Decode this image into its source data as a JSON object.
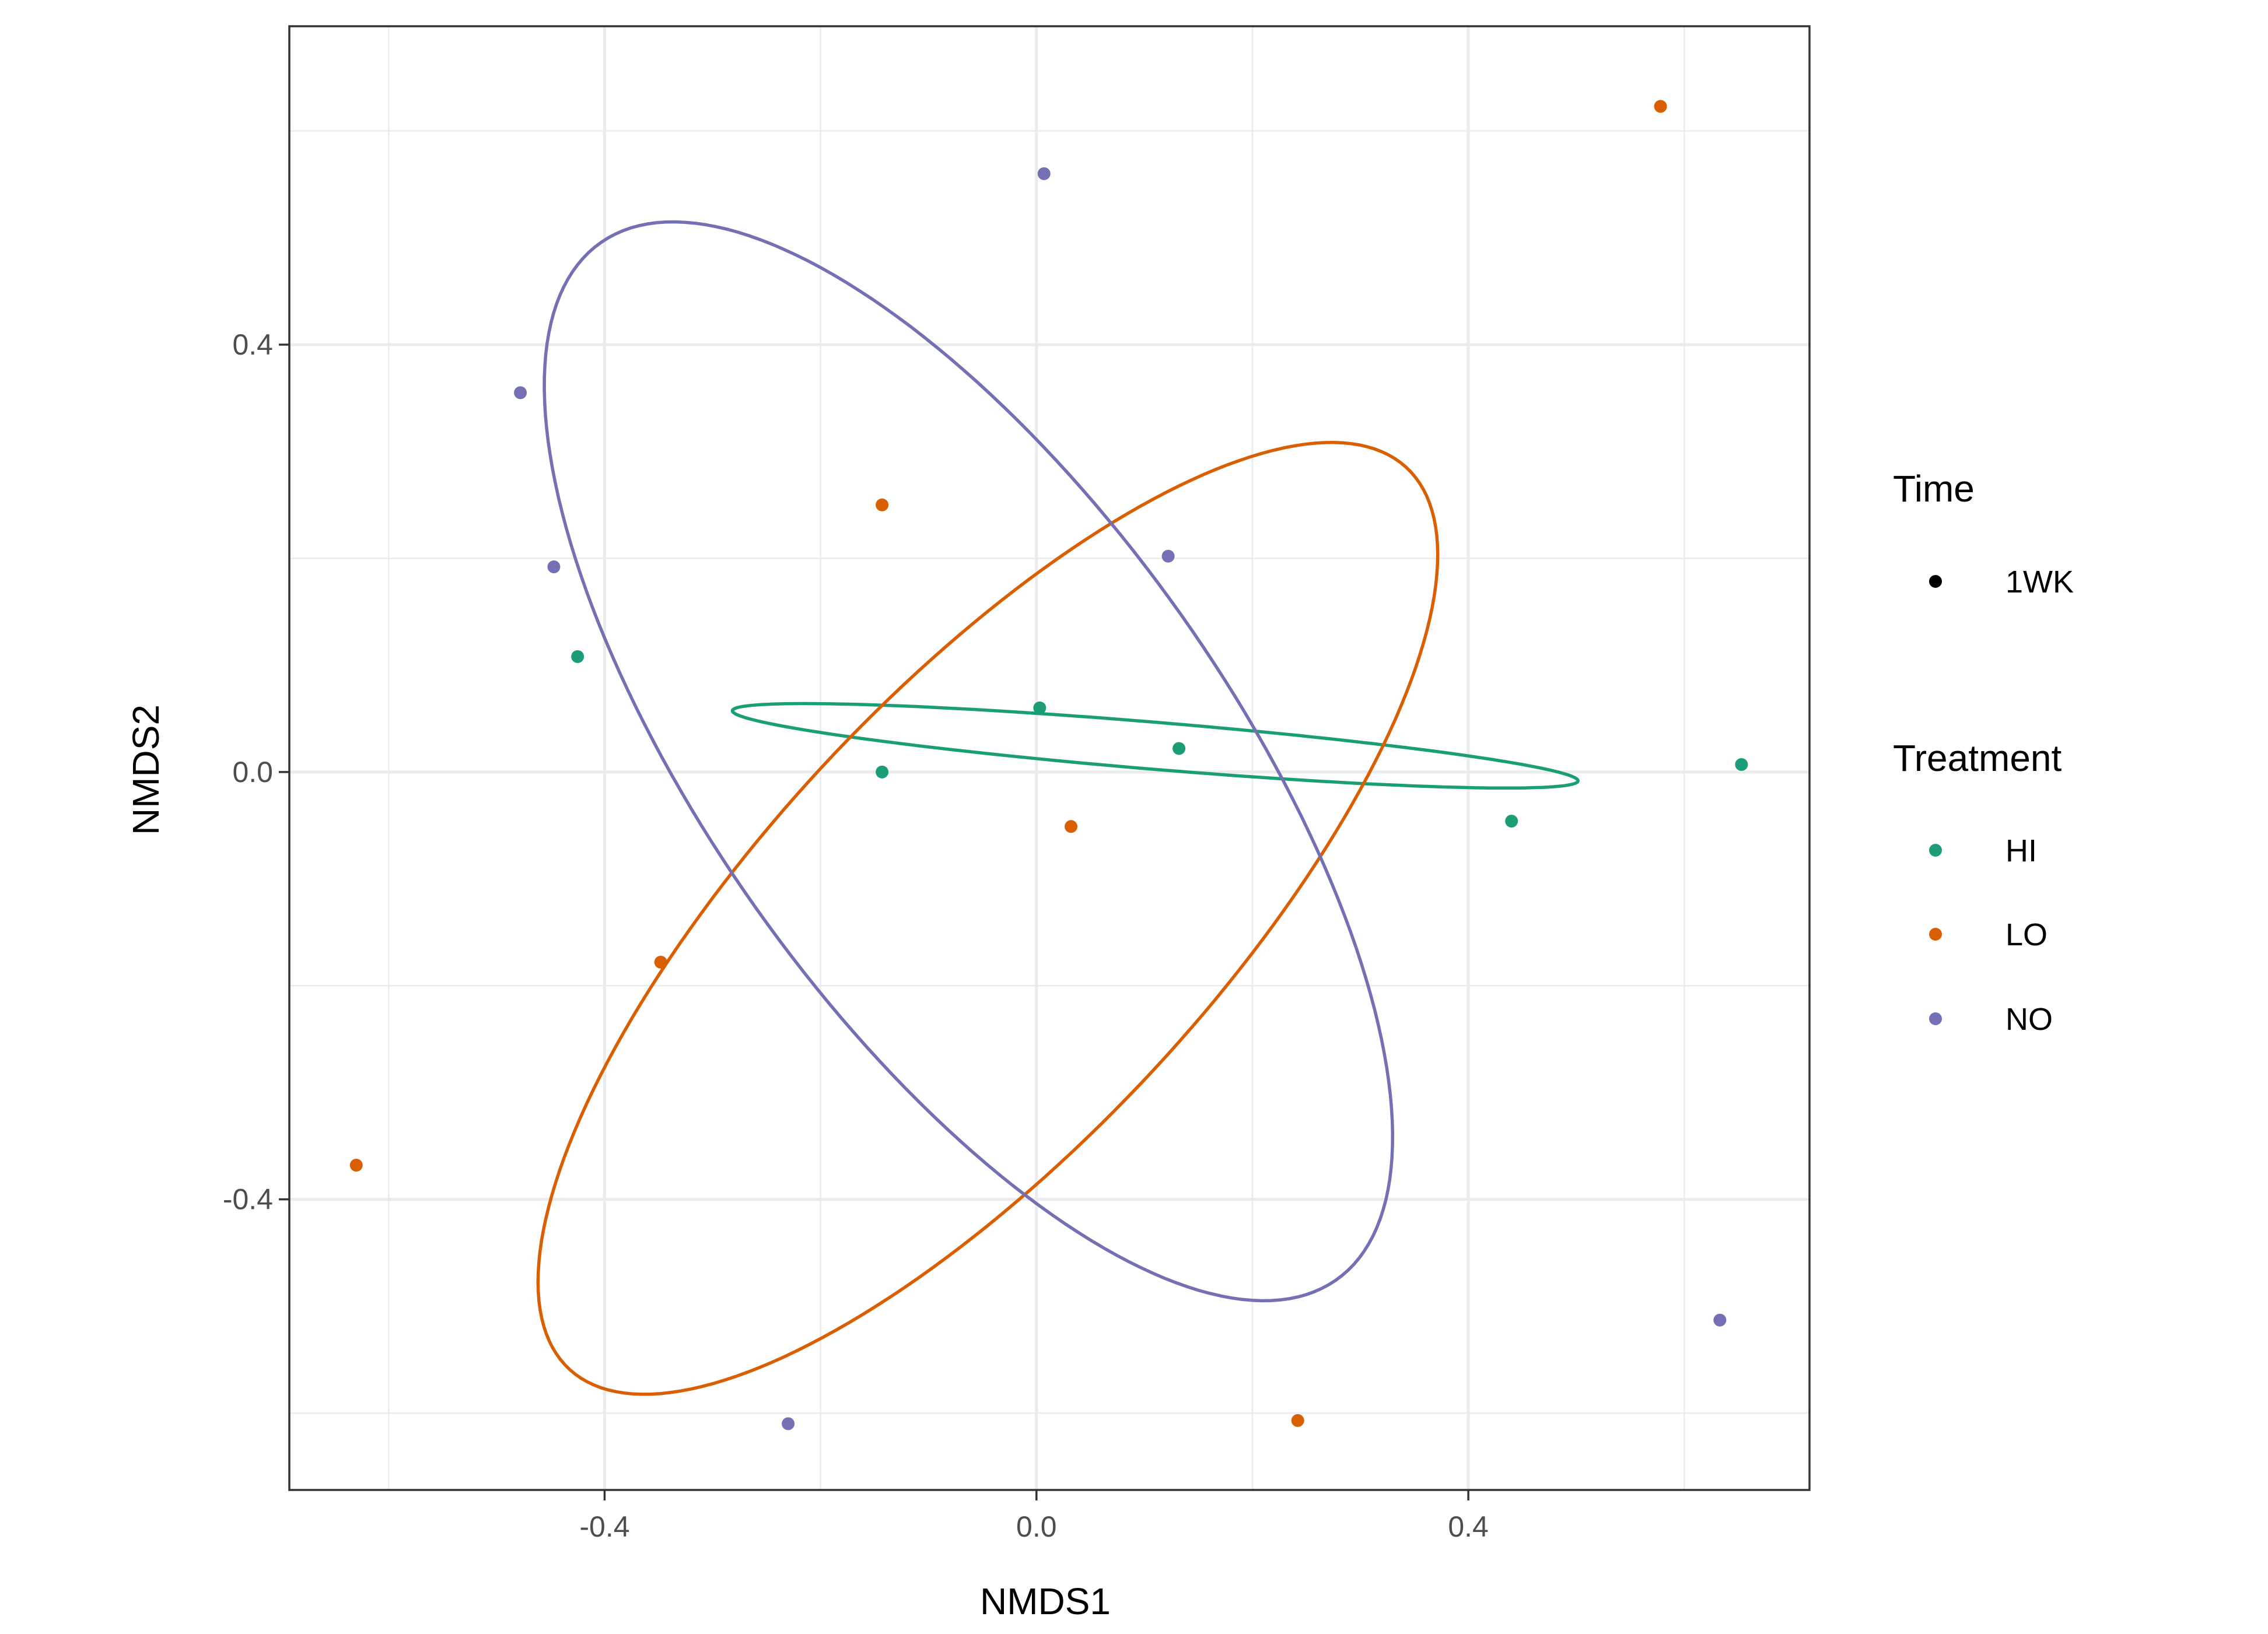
{
  "chart_data": {
    "type": "scatter",
    "xlabel": "NMDS1",
    "ylabel": "NMDS2",
    "xlim": [
      -0.692,
      0.716
    ],
    "ylim": [
      -0.672,
      0.698
    ],
    "x_ticks": [
      -0.4,
      0.0,
      0.4
    ],
    "x_tick_labels": [
      "-0.4",
      "0.0",
      "0.4"
    ],
    "y_ticks": [
      -0.4,
      0.0,
      0.4
    ],
    "y_tick_labels": [
      "-0.4",
      "0.0",
      "0.4"
    ],
    "grid": true,
    "legend_position": "right",
    "legend": {
      "time": {
        "title": "Time",
        "items": [
          {
            "label": "1WK",
            "color": "#000000"
          }
        ]
      },
      "treatment": {
        "title": "Treatment",
        "items": [
          {
            "label": "HI",
            "color": "#1B9E77"
          },
          {
            "label": "LO",
            "color": "#D95F02"
          },
          {
            "label": "NO",
            "color": "#7570B3"
          }
        ]
      }
    },
    "series": [
      {
        "name": "HI",
        "color": "#1B9E77",
        "points": [
          {
            "x": -0.425,
            "y": 0.108
          },
          {
            "x": -0.143,
            "y": 0.0
          },
          {
            "x": 0.003,
            "y": 0.06
          },
          {
            "x": 0.132,
            "y": 0.022
          },
          {
            "x": 0.44,
            "y": -0.046
          },
          {
            "x": 0.653,
            "y": 0.007
          }
        ],
        "ellipse": {
          "cx": 0.11,
          "cy": 0.0245,
          "rx": 0.393,
          "ry": 0.022,
          "angle_deg": -4.8
        }
      },
      {
        "name": "LO",
        "color": "#D95F02",
        "points": [
          {
            "x": 0.578,
            "y": 0.623
          },
          {
            "x": -0.143,
            "y": 0.25
          },
          {
            "x": 0.032,
            "y": -0.051
          },
          {
            "x": -0.348,
            "y": -0.178
          },
          {
            "x": -0.63,
            "y": -0.368
          },
          {
            "x": 0.242,
            "y": -0.607
          }
        ],
        "ellipse": {
          "cx": -0.045,
          "cy": -0.137,
          "rx": 0.573,
          "ry": 0.209,
          "angle_deg": 47.5
        }
      },
      {
        "name": "NO",
        "color": "#7570B3",
        "points": [
          {
            "x": 0.007,
            "y": 0.56
          },
          {
            "x": -0.478,
            "y": 0.355
          },
          {
            "x": -0.447,
            "y": 0.192
          },
          {
            "x": 0.122,
            "y": 0.202
          },
          {
            "x": 0.633,
            "y": -0.513
          },
          {
            "x": -0.23,
            "y": -0.61
          }
        ],
        "ellipse": {
          "cx": -0.063,
          "cy": 0.01,
          "rx": 0.593,
          "ry": 0.24,
          "angle_deg": -55.0
        }
      }
    ]
  }
}
